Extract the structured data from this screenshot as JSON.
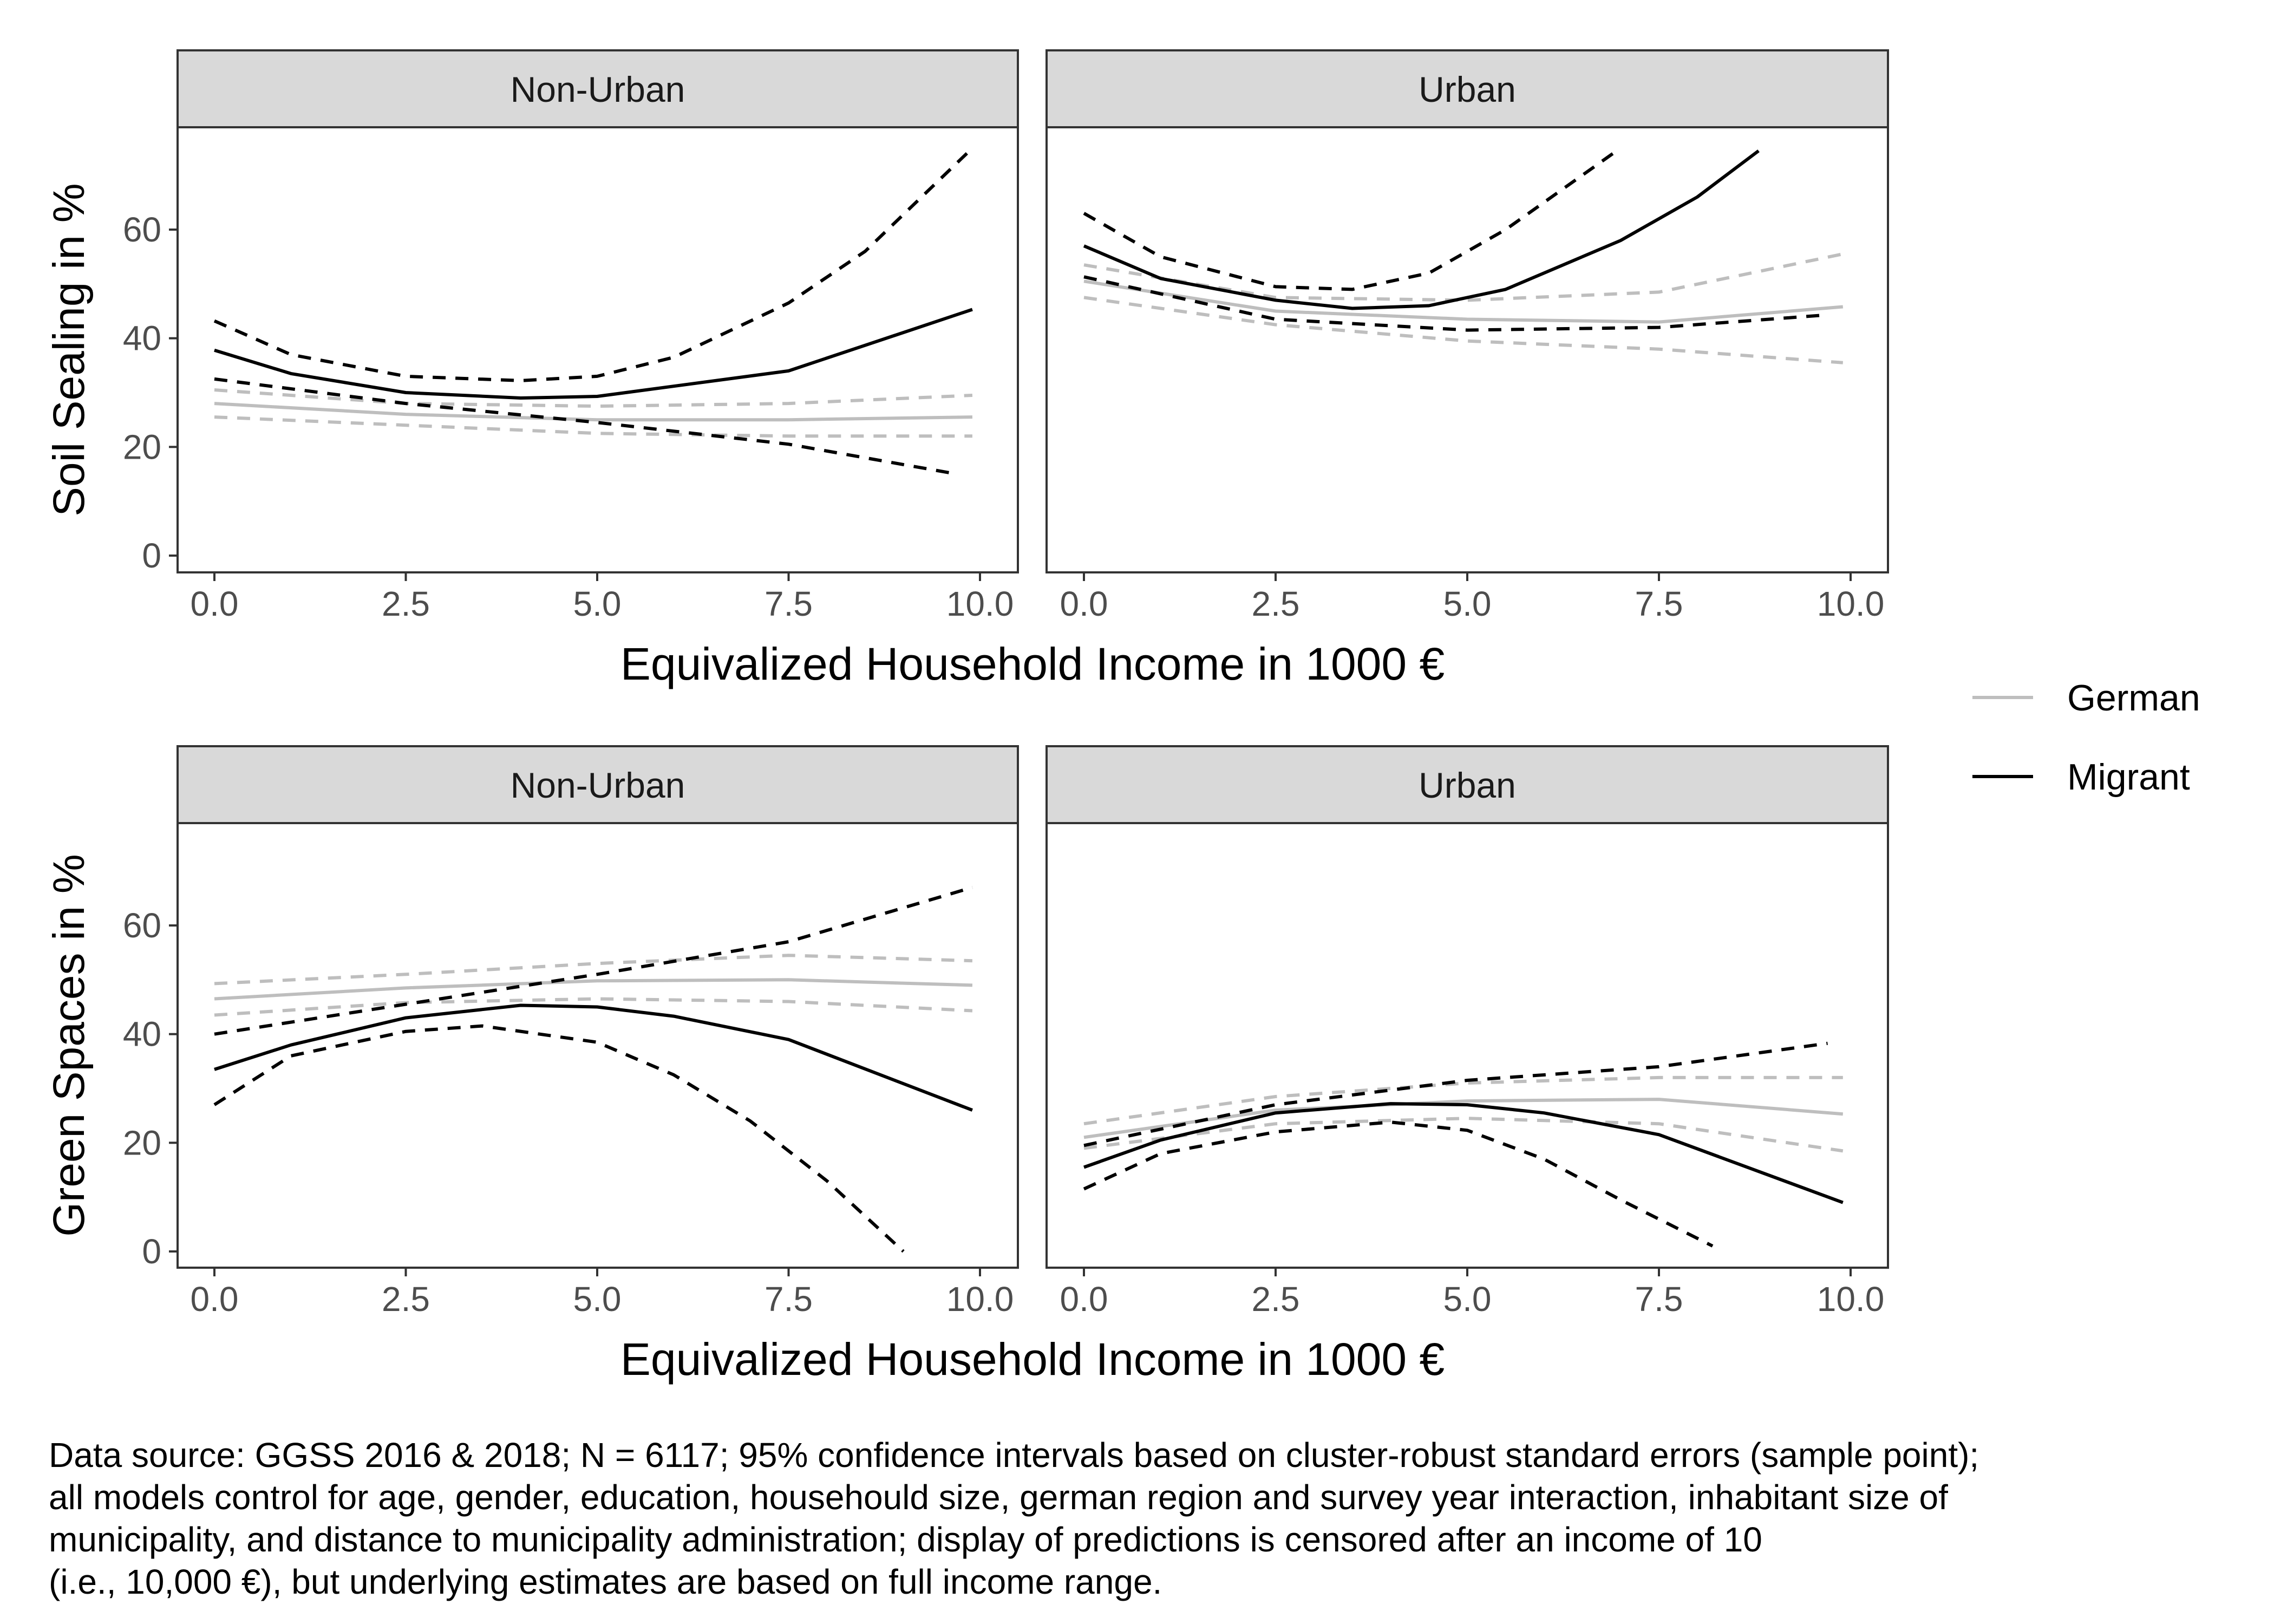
{
  "chart_data": [
    {
      "type": "line",
      "panel": "top-left",
      "facet_label": "Non-Urban",
      "ylabel": "Soil Sealing in %",
      "xlabel": "Equivalized Household Income in 1000 €",
      "xlim": [
        0,
        10
      ],
      "ylim": [
        0,
        75
      ],
      "x_ticks": [
        "0.0",
        "2.5",
        "5.0",
        "7.5",
        "10.0"
      ],
      "y_ticks": [
        "0",
        "20",
        "40",
        "60"
      ],
      "series": [
        {
          "group": "German",
          "kind": "estimate",
          "x": [
            0,
            2.5,
            5,
            7.5,
            9.9
          ],
          "y": [
            28,
            26,
            25,
            25,
            25.5
          ]
        },
        {
          "group": "German",
          "kind": "ci_upper",
          "x": [
            0,
            2.5,
            5,
            7.5,
            9.9
          ],
          "y": [
            30.5,
            28,
            27.5,
            28,
            29.5
          ]
        },
        {
          "group": "German",
          "kind": "ci_lower",
          "x": [
            0,
            2.5,
            5,
            7.5,
            9.9
          ],
          "y": [
            25.5,
            24,
            22.5,
            22,
            22
          ]
        },
        {
          "group": "Migrant",
          "kind": "estimate",
          "x": [
            0,
            1,
            2.5,
            4,
            5,
            7.5,
            9.9
          ],
          "y": [
            37.8,
            33.5,
            30,
            29,
            29.3,
            34,
            45.3
          ]
        },
        {
          "group": "Migrant",
          "kind": "ci_upper",
          "x": [
            0,
            1,
            2.5,
            4,
            5,
            6,
            7.5,
            8.5,
            9.9
          ],
          "y": [
            43.2,
            37,
            33,
            32.2,
            33,
            36.5,
            46.5,
            56,
            75
          ]
        },
        {
          "group": "Migrant",
          "kind": "ci_lower",
          "x": [
            0,
            2.5,
            5,
            7.5,
            9.7
          ],
          "y": [
            32.5,
            28,
            24.5,
            20.5,
            15
          ]
        }
      ]
    },
    {
      "type": "line",
      "panel": "top-right",
      "facet_label": "Urban",
      "xlabel": "Equivalized Household Income in 1000 €",
      "xlim": [
        0,
        10
      ],
      "ylim": [
        0,
        75
      ],
      "x_ticks": [
        "0.0",
        "2.5",
        "5.0",
        "7.5",
        "10.0"
      ],
      "series": [
        {
          "group": "German",
          "kind": "estimate",
          "x": [
            0,
            2.5,
            5,
            7.5,
            9.9
          ],
          "y": [
            50.5,
            45,
            43.5,
            43,
            45.8
          ]
        },
        {
          "group": "German",
          "kind": "ci_upper",
          "x": [
            0,
            2.5,
            5,
            7.5,
            9.9
          ],
          "y": [
            53.5,
            47.5,
            47,
            48.5,
            55.5
          ]
        },
        {
          "group": "German",
          "kind": "ci_lower",
          "x": [
            0,
            2.5,
            5,
            7.5,
            9.9
          ],
          "y": [
            47.5,
            42.5,
            39.5,
            38,
            35.5
          ]
        },
        {
          "group": "Migrant",
          "kind": "estimate",
          "x": [
            0,
            1,
            2.5,
            3.5,
            4.5,
            5.5,
            7,
            8,
            8.8
          ],
          "y": [
            57,
            51,
            47,
            45.5,
            46,
            49,
            58,
            66,
            74.5
          ]
        },
        {
          "group": "Migrant",
          "kind": "ci_upper",
          "x": [
            0,
            1,
            2.5,
            3.5,
            4.5,
            5.5,
            6.9
          ],
          "y": [
            63,
            55,
            49.5,
            49,
            52,
            60,
            74
          ]
        },
        {
          "group": "Migrant",
          "kind": "ci_lower",
          "x": [
            0,
            2.5,
            5,
            7.5,
            9.7
          ],
          "y": [
            51.3,
            43.5,
            41.5,
            42,
            44.3
          ]
        }
      ]
    },
    {
      "type": "line",
      "panel": "bottom-left",
      "facet_label": "Non-Urban",
      "ylabel": "Green Spaces in %",
      "xlabel": "Equivalized Household Income in 1000 €",
      "xlim": [
        0,
        10
      ],
      "ylim": [
        0,
        75
      ],
      "x_ticks": [
        "0.0",
        "2.5",
        "5.0",
        "7.5",
        "10.0"
      ],
      "y_ticks": [
        "0",
        "20",
        "40",
        "60"
      ],
      "series": [
        {
          "group": "German",
          "kind": "estimate",
          "x": [
            0,
            2.5,
            5,
            7.5,
            9.9
          ],
          "y": [
            46.5,
            48.5,
            49.8,
            50,
            49
          ]
        },
        {
          "group": "German",
          "kind": "ci_upper",
          "x": [
            0,
            2.5,
            5,
            7.5,
            9.9
          ],
          "y": [
            49.3,
            51,
            53,
            54.5,
            53.5
          ]
        },
        {
          "group": "German",
          "kind": "ci_lower",
          "x": [
            0,
            2.5,
            5,
            7.5,
            9.9
          ],
          "y": [
            43.5,
            45.8,
            46.5,
            46,
            44.3
          ]
        },
        {
          "group": "Migrant",
          "kind": "estimate",
          "x": [
            0,
            1,
            2.5,
            4,
            5,
            6,
            7.5,
            9.9
          ],
          "y": [
            33.5,
            38,
            43,
            45.3,
            45,
            43.3,
            39,
            26
          ]
        },
        {
          "group": "Migrant",
          "kind": "ci_upper",
          "x": [
            0,
            2.5,
            5,
            7.5,
            9.9
          ],
          "y": [
            40,
            45.5,
            51,
            57,
            67
          ]
        },
        {
          "group": "Migrant",
          "kind": "ci_lower",
          "x": [
            0,
            1,
            2.5,
            3.5,
            5,
            6,
            7,
            8,
            9
          ],
          "y": [
            27,
            36,
            40.5,
            41.5,
            38.5,
            32.5,
            24,
            13,
            0
          ]
        }
      ]
    },
    {
      "type": "line",
      "panel": "bottom-right",
      "facet_label": "Urban",
      "xlabel": "Equivalized Household Income in 1000 €",
      "xlim": [
        0,
        10
      ],
      "ylim": [
        0,
        75
      ],
      "x_ticks": [
        "0.0",
        "2.5",
        "5.0",
        "7.5",
        "10.0"
      ],
      "series": [
        {
          "group": "German",
          "kind": "estimate",
          "x": [
            0,
            2.5,
            5,
            7.5,
            9.9
          ],
          "y": [
            21,
            26,
            27.7,
            28,
            25.3
          ]
        },
        {
          "group": "German",
          "kind": "ci_upper",
          "x": [
            0,
            2.5,
            5,
            7.5,
            9.9
          ],
          "y": [
            23.5,
            28.5,
            31,
            32,
            32
          ]
        },
        {
          "group": "German",
          "kind": "ci_lower",
          "x": [
            0,
            2.5,
            5,
            7.5,
            9.9
          ],
          "y": [
            19,
            23.5,
            24.5,
            23.5,
            18.5
          ]
        },
        {
          "group": "Migrant",
          "kind": "estimate",
          "x": [
            0,
            1,
            2.5,
            4,
            5,
            6,
            7.5,
            9.9
          ],
          "y": [
            15.5,
            20.5,
            25.5,
            27.2,
            27,
            25.5,
            21.5,
            9
          ]
        },
        {
          "group": "Migrant",
          "kind": "ci_upper",
          "x": [
            0,
            2.5,
            5,
            7.5,
            9.7
          ],
          "y": [
            19.5,
            27,
            31.5,
            34,
            38.3
          ]
        },
        {
          "group": "Migrant",
          "kind": "ci_lower",
          "x": [
            0,
            1,
            2.5,
            4,
            5,
            6,
            7,
            8.2
          ],
          "y": [
            11.5,
            18,
            22,
            23.8,
            22.3,
            17,
            9.5,
            1
          ]
        }
      ]
    }
  ],
  "legend": {
    "placement": "right",
    "entries": [
      {
        "label": "German",
        "color": "#bebebe"
      },
      {
        "label": "Migrant",
        "color": "#000000"
      }
    ]
  },
  "colors": {
    "german": "#bebebe",
    "migrant": "#000000",
    "strip": "#d9d9d9",
    "panel_border": "#333333",
    "tick_text": "#4d4d4d"
  },
  "caption": {
    "lines": [
      "Data source: GGSS 2016 & 2018; N = 6117; 95% confidence intervals based on cluster-robust standard errors (sample point);",
      "all models control for age, gender, education, househould size, german region and survey year interaction, inhabitant size of",
      "municipality, and distance to municipality administration; display of predictions is censored after an income of 10",
      "(i.e., 10,000 €), but underlying estimates are based on full income range."
    ]
  }
}
